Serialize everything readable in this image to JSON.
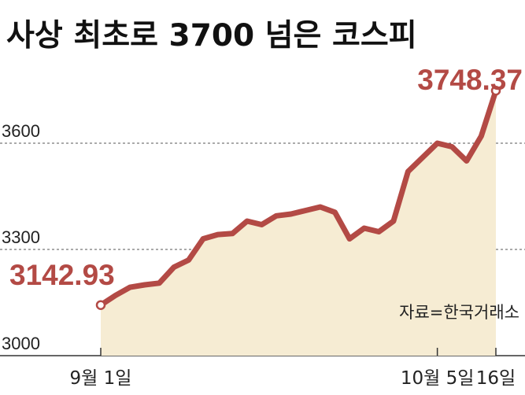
{
  "title": "사상 최초로 3700 넘은 코스피",
  "source": "자료=한국거래소",
  "colors": {
    "line": "#b34a45",
    "area": "#f6ecd3",
    "grid": "#555555",
    "axis": "#333333",
    "text": "#222222"
  },
  "chart_data": {
    "type": "area",
    "title": "사상 최초로 3700 넘은 코스피",
    "xlabel": "",
    "ylabel": "",
    "ylim": [
      3000,
      3800
    ],
    "yticks": [
      3000,
      3300,
      3600
    ],
    "ytick_labels": [
      "3000",
      "3300",
      "3600"
    ],
    "xtick_labels": [
      {
        "index": 0,
        "label": "9월 1일"
      },
      {
        "index": 23,
        "label": "10월 5일"
      },
      {
        "index": 27,
        "label": "16일"
      }
    ],
    "grid": true,
    "series": [
      {
        "values": [
          3142.93,
          3170,
          3193,
          3200,
          3205,
          3250,
          3270,
          3330,
          3342,
          3345,
          3380,
          3370,
          3395,
          3400,
          3410,
          3420,
          3405,
          3330,
          3360,
          3350,
          3380,
          3520,
          3560,
          3600,
          3590,
          3550,
          3620,
          3748.37
        ]
      }
    ],
    "annotations": [
      {
        "index": 0,
        "label": "3142.93"
      },
      {
        "index": 27,
        "label": "3748.37"
      }
    ]
  }
}
